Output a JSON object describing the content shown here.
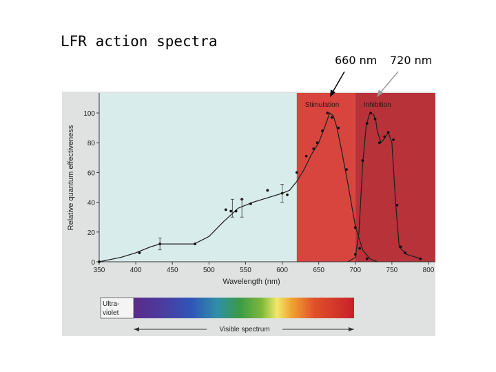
{
  "slide": {
    "title": "LFR action spectra",
    "marker_660": "660 nm",
    "marker_720": "720 nm"
  },
  "chart_data": {
    "type": "line",
    "xlabel": "Wavelength (nm)",
    "ylabel": "Relative quantum effectiveness",
    "xlim": [
      350,
      800
    ],
    "ylim": [
      0,
      110
    ],
    "x_ticks": [
      350,
      400,
      450,
      500,
      550,
      600,
      650,
      700,
      750,
      800
    ],
    "y_ticks": [
      0,
      20,
      40,
      60,
      80,
      100
    ],
    "regions": [
      {
        "label": "Stimulation",
        "from": 620,
        "to": 700,
        "color": "#d8453f"
      },
      {
        "label": "Inhibition",
        "from": 700,
        "to": 800,
        "color": "#b8323a"
      }
    ],
    "series": [
      {
        "curve": [
          [
            350,
            0
          ],
          [
            380,
            3
          ],
          [
            400,
            6
          ],
          [
            420,
            10
          ],
          [
            433,
            12
          ],
          [
            440,
            12
          ],
          [
            470,
            12
          ],
          [
            480,
            12
          ],
          [
            500,
            17
          ],
          [
            520,
            27
          ],
          [
            540,
            36
          ],
          [
            560,
            40
          ],
          [
            580,
            43
          ],
          [
            600,
            46
          ],
          [
            610,
            48
          ],
          [
            620,
            54
          ],
          [
            630,
            62
          ],
          [
            640,
            72
          ],
          [
            650,
            80
          ],
          [
            660,
            93
          ],
          [
            665,
            100
          ],
          [
            670,
            98
          ],
          [
            675,
            90
          ],
          [
            680,
            78
          ],
          [
            690,
            52
          ],
          [
            700,
            24
          ],
          [
            710,
            8
          ],
          [
            720,
            2
          ],
          [
            730,
            0
          ]
        ],
        "points": [
          [
            350,
            0
          ],
          [
            405,
            6
          ],
          [
            433,
            12
          ],
          [
            481,
            12
          ],
          [
            523,
            35
          ],
          [
            530,
            34
          ],
          [
            537,
            34
          ],
          [
            545,
            42
          ],
          [
            557,
            39
          ],
          [
            580,
            48
          ],
          [
            600,
            46
          ],
          [
            607,
            45
          ],
          [
            620,
            60
          ],
          [
            633,
            71
          ],
          [
            643,
            76
          ],
          [
            648,
            80
          ],
          [
            655,
            88
          ],
          [
            662,
            100
          ],
          [
            668,
            97
          ],
          [
            677,
            90
          ],
          [
            688,
            62
          ],
          [
            700,
            23
          ],
          [
            706,
            9
          ],
          [
            716,
            2
          ]
        ],
        "error_bars": [
          [
            433,
            4
          ],
          [
            532,
            6
          ],
          [
            545,
            6
          ],
          [
            600,
            6
          ]
        ]
      },
      {
        "curve": [
          [
            690,
            0
          ],
          [
            700,
            3
          ],
          [
            705,
            20
          ],
          [
            710,
            65
          ],
          [
            715,
            92
          ],
          [
            720,
            100
          ],
          [
            725,
            99
          ],
          [
            728,
            95
          ],
          [
            730,
            88
          ],
          [
            735,
            80
          ],
          [
            740,
            83
          ],
          [
            745,
            87
          ],
          [
            750,
            80
          ],
          [
            755,
            40
          ],
          [
            760,
            10
          ],
          [
            770,
            5
          ],
          [
            790,
            2
          ]
        ],
        "points": [
          [
            700,
            5
          ],
          [
            710,
            68
          ],
          [
            716,
            93
          ],
          [
            721,
            100
          ],
          [
            727,
            96
          ],
          [
            733,
            80
          ],
          [
            740,
            84
          ],
          [
            745,
            87
          ],
          [
            752,
            82
          ],
          [
            757,
            38
          ],
          [
            762,
            10
          ],
          [
            768,
            6
          ],
          [
            789,
            2
          ]
        ]
      }
    ],
    "spectrum": {
      "uv_label_1": "Ultra-",
      "uv_label_2": "violet",
      "visible_label": "Visible spectrum"
    }
  }
}
